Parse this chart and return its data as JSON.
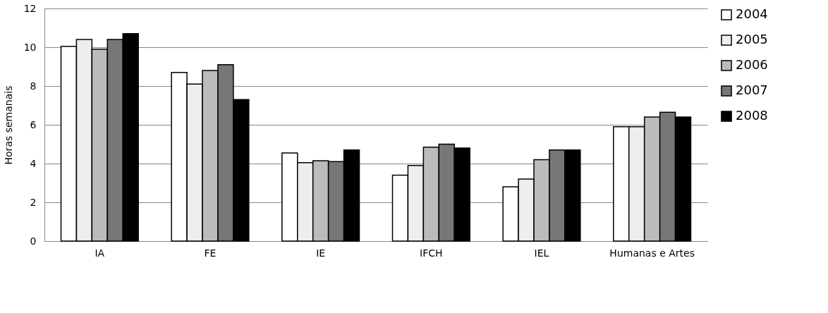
{
  "chart_data": {
    "type": "bar",
    "ylabel": "Horas semanais",
    "categories": [
      "IA",
      "FE",
      "IE",
      "IFCH",
      "IEL",
      "Humanas e Artes"
    ],
    "series": [
      {
        "name": "2004",
        "color": "#ffffff",
        "values": [
          10.05,
          8.7,
          4.55,
          3.4,
          2.8,
          5.9
        ]
      },
      {
        "name": "2005",
        "color": "#eeeeee",
        "values": [
          10.4,
          8.1,
          4.05,
          3.9,
          3.2,
          5.9
        ]
      },
      {
        "name": "2006",
        "color": "#bbbbbb",
        "values": [
          9.9,
          8.8,
          4.15,
          4.85,
          4.2,
          6.4
        ]
      },
      {
        "name": "2007",
        "color": "#777777",
        "values": [
          10.4,
          9.1,
          4.1,
          5.0,
          4.7,
          6.65
        ]
      },
      {
        "name": "2008",
        "color": "#000000",
        "values": [
          10.7,
          7.3,
          4.7,
          4.8,
          4.7,
          6.4
        ]
      }
    ],
    "ylim": [
      0,
      12
    ],
    "yticks": [
      0,
      2,
      4,
      6,
      8,
      10,
      12
    ],
    "grid": "y",
    "legend": "right"
  }
}
